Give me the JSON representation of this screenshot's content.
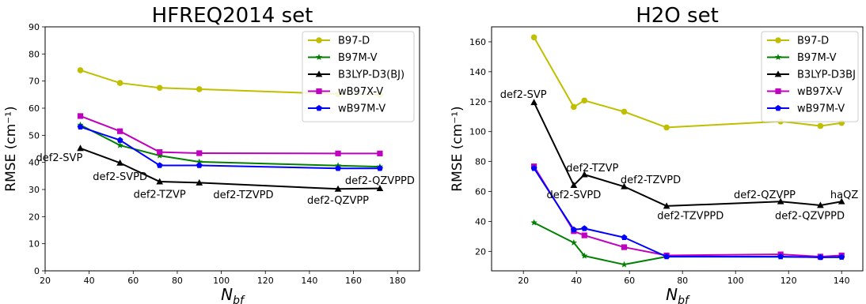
{
  "chart_data": [
    {
      "type": "line",
      "title": "HFREQ2014 set",
      "xlabel": "N_bf",
      "ylabel": "RMSE (cm⁻¹)",
      "xlim": [
        20,
        190
      ],
      "ylim": [
        0,
        90
      ],
      "xticks": [
        20,
        40,
        60,
        80,
        100,
        120,
        140,
        160,
        180
      ],
      "yticks": [
        0,
        10,
        20,
        30,
        40,
        50,
        60,
        70,
        80,
        90
      ],
      "legend_position": "top-right",
      "series": [
        {
          "name": "B97-D",
          "color": "#bfbf00",
          "marker": "circle",
          "x": [
            36,
            54,
            72,
            90,
            153,
            172
          ],
          "y": [
            74.0,
            69.3,
            67.5,
            67.0,
            65.2,
            65.0
          ]
        },
        {
          "name": "B97M-V",
          "color": "#008000",
          "marker": "star",
          "x": [
            36,
            54,
            72,
            90,
            153,
            172
          ],
          "y": [
            53.8,
            46.3,
            42.5,
            40.2,
            38.8,
            38.4
          ]
        },
        {
          "name": "B3LYP-D3(BJ)",
          "color": "#000000",
          "marker": "triangle",
          "x": [
            36,
            54,
            72,
            90,
            153,
            172
          ],
          "y": [
            45.2,
            39.8,
            32.9,
            32.5,
            30.2,
            30.4
          ]
        },
        {
          "name": "wB97X-V",
          "color": "#bf00bf",
          "marker": "square",
          "x": [
            36,
            54,
            72,
            90,
            153,
            172
          ],
          "y": [
            57.1,
            51.5,
            43.8,
            43.4,
            43.3,
            43.3
          ]
        },
        {
          "name": "wB97M-V",
          "color": "#0000ff",
          "marker": "pentagon",
          "x": [
            36,
            54,
            72,
            90,
            153,
            172
          ],
          "y": [
            53.1,
            48.2,
            38.9,
            38.9,
            37.8,
            37.8
          ]
        }
      ],
      "annotations": [
        {
          "text": "def2-SVP",
          "x": 37,
          "y": 40.5,
          "anchor": "end"
        },
        {
          "text": "def2-SVPD",
          "x": 54,
          "y": 33.5,
          "anchor": "middle"
        },
        {
          "text": "def2-TZVP",
          "x": 72,
          "y": 27.0,
          "anchor": "middle"
        },
        {
          "text": "def2-TZVPD",
          "x": 110,
          "y": 26.8,
          "anchor": "middle"
        },
        {
          "text": "def2-QZVPP",
          "x": 153,
          "y": 24.7,
          "anchor": "middle"
        },
        {
          "text": "def2-QZVPPD",
          "x": 172,
          "y": 32.0,
          "anchor": "middle"
        }
      ]
    },
    {
      "type": "line",
      "title": "H2O set",
      "xlabel": "N_bf",
      "ylabel": "RMSE (cm⁻¹)",
      "xlim": [
        8,
        148
      ],
      "ylim": [
        7,
        170
      ],
      "xticks": [
        20,
        40,
        60,
        80,
        100,
        120,
        140
      ],
      "yticks": [
        20,
        40,
        60,
        80,
        100,
        120,
        140,
        160
      ],
      "legend_position": "top-right",
      "series": [
        {
          "name": "B97-D",
          "color": "#bfbf00",
          "marker": "circle",
          "x": [
            24,
            39,
            43,
            58,
            74,
            117,
            132,
            140
          ],
          "y": [
            163,
            116.5,
            120.8,
            113.3,
            102.8,
            106.8,
            103.8,
            105.8
          ]
        },
        {
          "name": "B97M-V",
          "color": "#008000",
          "marker": "star",
          "x": [
            24,
            39,
            43,
            58,
            74,
            117,
            132,
            140
          ],
          "y": [
            39.2,
            25.8,
            17.0,
            11.2,
            16.5,
            16.3,
            16.2,
            16.0
          ]
        },
        {
          "name": "B3LYP-D3BJ",
          "color": "#000000",
          "marker": "triangle",
          "x": [
            24,
            39,
            43,
            58,
            74,
            117,
            132,
            140
          ],
          "y": [
            119.5,
            64.2,
            71.3,
            63.3,
            50.3,
            53.3,
            50.8,
            53.3
          ]
        },
        {
          "name": "wB97X-V",
          "color": "#bf00bf",
          "marker": "square",
          "x": [
            24,
            39,
            43,
            58,
            74,
            117,
            132,
            140
          ],
          "y": [
            76.8,
            33.5,
            30.7,
            22.8,
            17.3,
            18.0,
            16.5,
            17.3
          ]
        },
        {
          "name": "wB97M-V",
          "color": "#0000ff",
          "marker": "pentagon",
          "x": [
            24,
            39,
            43,
            58,
            74,
            117,
            132,
            140
          ],
          "y": [
            75.5,
            34.5,
            35.3,
            29.3,
            16.5,
            16.5,
            16.0,
            16.2
          ]
        }
      ],
      "annotations": [
        {
          "text": "def2-SVP",
          "x": 20,
          "y": 122.5,
          "anchor": "middle"
        },
        {
          "text": "def2-SVPD",
          "x": 39,
          "y": 55.5,
          "anchor": "middle"
        },
        {
          "text": "def2-TZVP",
          "x": 46,
          "y": 73.5,
          "anchor": "middle"
        },
        {
          "text": "def2-TZVPD",
          "x": 68,
          "y": 65.5,
          "anchor": "middle"
        },
        {
          "text": "def2-TZVPPD",
          "x": 83,
          "y": 41.5,
          "anchor": "middle"
        },
        {
          "text": "def2-QZVPP",
          "x": 111,
          "y": 55.5,
          "anchor": "middle"
        },
        {
          "text": "def2-QZVPPD",
          "x": 128,
          "y": 41.5,
          "anchor": "middle"
        },
        {
          "text": "haQZ",
          "x": 141,
          "y": 55.5,
          "anchor": "middle"
        }
      ]
    }
  ]
}
